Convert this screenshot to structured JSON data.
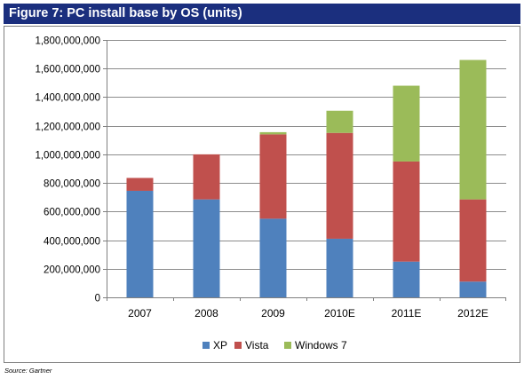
{
  "figure": {
    "title": "Figure 7: PC install base by OS (units)",
    "source": "Source: Gartner"
  },
  "colors": {
    "title_bg": "#1b2f7e",
    "xp": "#4f81bd",
    "vista": "#c0504d",
    "windows7": "#9bbb59"
  },
  "chart_data": {
    "type": "bar",
    "stacked": true,
    "title": "",
    "xlabel": "",
    "ylabel": "",
    "categories": [
      "2007",
      "2008",
      "2009",
      "2010E",
      "2011E",
      "2012E"
    ],
    "ylim": [
      0,
      1800000000
    ],
    "yticks": [
      0,
      200000000,
      400000000,
      600000000,
      800000000,
      1000000000,
      1200000000,
      1400000000,
      1600000000,
      1800000000
    ],
    "ytick_labels": [
      "0",
      "200,000,000",
      "400,000,000",
      "600,000,000",
      "800,000,000",
      "1,000,000,000",
      "1,200,000,000",
      "1,400,000,000",
      "1,600,000,000",
      "1,800,000,000"
    ],
    "grid": true,
    "legend": "bottom",
    "series": [
      {
        "name": "XP",
        "color": "#4f81bd",
        "values": [
          745000000,
          685000000,
          550000000,
          410000000,
          250000000,
          110000000
        ]
      },
      {
        "name": "Vista",
        "color": "#c0504d",
        "values": [
          90000000,
          315000000,
          590000000,
          740000000,
          700000000,
          575000000
        ]
      },
      {
        "name": "Windows 7",
        "color": "#9bbb59",
        "values": [
          0,
          0,
          15000000,
          155000000,
          530000000,
          975000000
        ]
      }
    ]
  }
}
